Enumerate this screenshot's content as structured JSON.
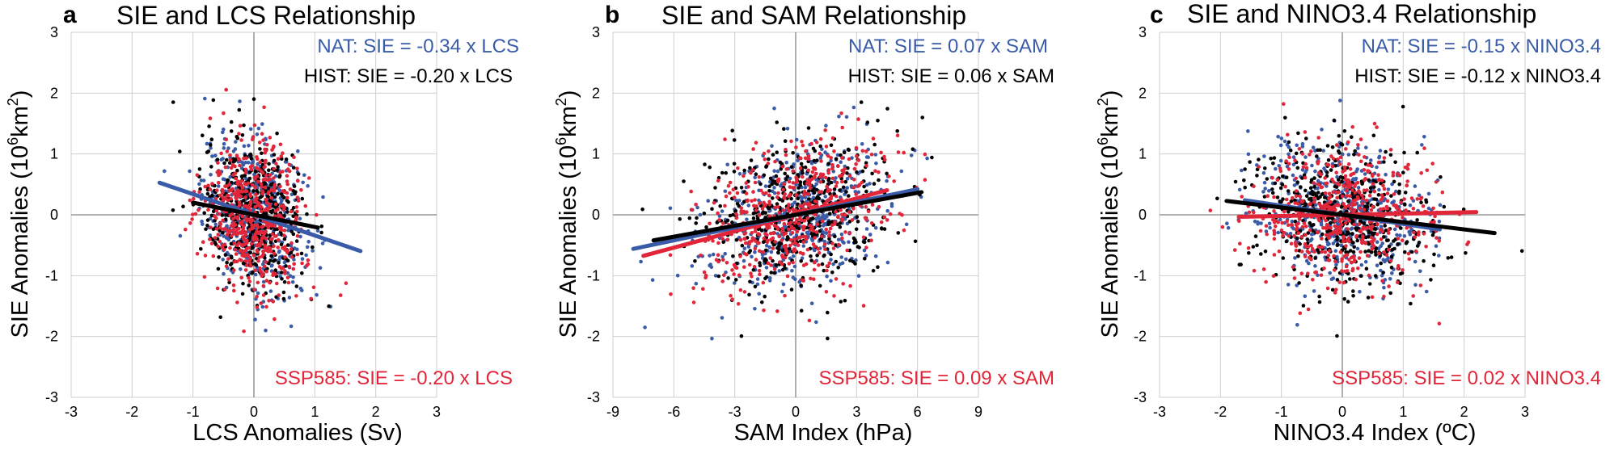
{
  "colors": {
    "nat": "#3a5ca8",
    "hist": "#000000",
    "ssp585": "#e2263a",
    "grid": "#cfcfcf",
    "axis": "#999999"
  },
  "chart_data": [
    {
      "type": "scatter",
      "letter": "a",
      "title": "SIE and LCS Relationship",
      "xlabel": "LCS Anomalies (Sv)",
      "ylabel_main": "SIE Anomalies (10",
      "ylabel_sup": "6",
      "ylabel_unit": "km",
      "ylabel_sup2": "2",
      "ylabel_close": ")",
      "xlim": [
        -3,
        3
      ],
      "ylim": [
        -3,
        3
      ],
      "xticks": [
        -3,
        -2,
        -1,
        0,
        1,
        2,
        3
      ],
      "yticks": [
        -3,
        -2,
        -1,
        0,
        1,
        2,
        3
      ],
      "xtick_labels": [
        "-3",
        "-2",
        "-1",
        "0",
        "1",
        "2",
        "3"
      ],
      "ytick_labels": [
        "-3",
        "-2",
        "-1",
        "0",
        "1",
        "2",
        "3"
      ],
      "cloud": {
        "sx": 0.42,
        "sy": 0.6
      },
      "equations": {
        "nat": "NAT: SIE = -0.34 x LCS",
        "hist": "HIST: SIE = -0.20 x LCS",
        "ssp585": "SSP585: SIE = -0.20 x LCS"
      },
      "series": [
        {
          "name": "NAT",
          "slope": -0.34,
          "x_range": [
            -1.55,
            1.75
          ]
        },
        {
          "name": "HIST",
          "slope": -0.2,
          "x_range": [
            -1.0,
            1.05
          ]
        },
        {
          "name": "SSP585",
          "slope": -0.2,
          "x_range": [
            -1.0,
            0.85
          ]
        }
      ]
    },
    {
      "type": "scatter",
      "letter": "b",
      "title": "SIE and SAM Relationship",
      "xlabel": "SAM Index (hPa)",
      "ylabel_main": "SIE Anomalies (10",
      "ylabel_sup": "6",
      "ylabel_unit": "km",
      "ylabel_sup2": "2",
      "ylabel_close": ")",
      "xlim": [
        -9,
        9
      ],
      "ylim": [
        -3,
        3
      ],
      "xticks": [
        -9,
        -6,
        -3,
        0,
        3,
        6,
        9
      ],
      "yticks": [
        -3,
        -2,
        -1,
        0,
        1,
        2,
        3
      ],
      "xtick_labels": [
        "-9",
        "-6",
        "-3",
        "0",
        "3",
        "6",
        "9"
      ],
      "ytick_labels": [
        "-3",
        "-2",
        "-1",
        "0",
        "1",
        "2",
        "3"
      ],
      "cloud": {
        "sx": 2.3,
        "sy": 0.58
      },
      "equations": {
        "nat": "NAT: SIE = 0.07 x SAM",
        "hist": "HIST: SIE = 0.06 x SAM",
        "ssp585": "SSP585: SIE = 0.09 x SAM"
      },
      "series": [
        {
          "name": "NAT",
          "slope": 0.07,
          "x_range": [
            -8.0,
            6.0
          ]
        },
        {
          "name": "HIST",
          "slope": 0.06,
          "x_range": [
            -7.0,
            6.2
          ]
        },
        {
          "name": "SSP585",
          "slope": 0.09,
          "x_range": [
            -7.5,
            4.5
          ]
        }
      ]
    },
    {
      "type": "scatter",
      "letter": "c",
      "title": "SIE and NINO3.4 Relationship",
      "xlabel": "NINO3.4 Index (ºC)",
      "ylabel_main": "SIE Anomalies (10",
      "ylabel_sup": "6",
      "ylabel_unit": "km",
      "ylabel_sup2": "2",
      "ylabel_close": ")",
      "xlim": [
        -3,
        3
      ],
      "ylim": [
        -3,
        3
      ],
      "xticks": [
        -3,
        -2,
        -1,
        0,
        1,
        2,
        3
      ],
      "yticks": [
        -3,
        -2,
        -1,
        0,
        1,
        2,
        3
      ],
      "xtick_labels": [
        "-3",
        "-2",
        "-1",
        "0",
        "1",
        "2",
        "3"
      ],
      "ytick_labels": [
        "-3",
        "-2",
        "-1",
        "0",
        "1",
        "2",
        "3"
      ],
      "cloud": {
        "sx": 0.72,
        "sy": 0.58
      },
      "equations": {
        "nat": "NAT: SIE = -0.15 x NINO3.4",
        "hist": "HIST: SIE = -0.12 x NINO3.4",
        "ssp585": "SSP585: SIE = 0.02 x NINO3.4"
      },
      "series": [
        {
          "name": "NAT",
          "slope": -0.15,
          "x_range": [
            -1.6,
            1.6
          ]
        },
        {
          "name": "HIST",
          "slope": -0.12,
          "x_range": [
            -1.9,
            2.5
          ]
        },
        {
          "name": "SSP585",
          "slope": 0.02,
          "x_range": [
            -1.7,
            2.2
          ]
        }
      ]
    }
  ]
}
